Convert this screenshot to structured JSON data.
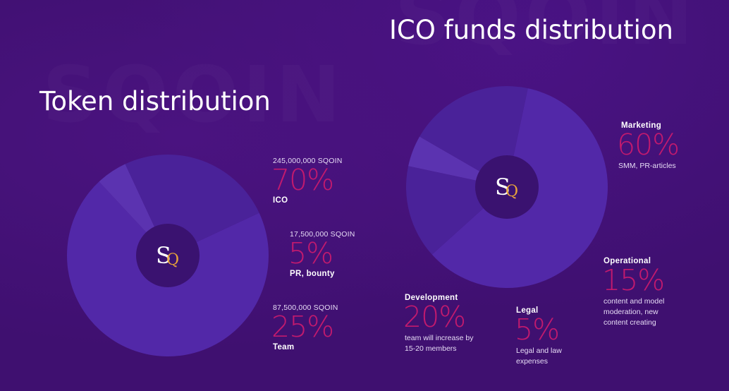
{
  "colors": {
    "background": "#3f1070",
    "pie_main": "#5228a8",
    "pie_shade": "#4a2299",
    "pie_light": "#5b33b0",
    "center": "#3a1270",
    "accent_percent": "#c21a6e",
    "logo_s": "#ffffff",
    "logo_q": "#e8a43a"
  },
  "logo": {
    "icon": "sqoin-logo-icon",
    "letter_s": "S",
    "letter_q": "Q"
  },
  "chart_data": [
    {
      "type": "pie",
      "title": "Token distribution",
      "slices": [
        {
          "name": "ICO",
          "value": 70,
          "amount": "245,000,000 SQOIN",
          "label": "70%"
        },
        {
          "name": "PR, bounty",
          "value": 5,
          "amount": "17,500,000 SQOIN",
          "label": "5%"
        },
        {
          "name": "Team",
          "value": 25,
          "amount": "87,500,000 SQOIN",
          "label": "25%"
        }
      ]
    },
    {
      "type": "pie",
      "title": "ICO funds distribution",
      "slices": [
        {
          "name": "Marketing",
          "value": 60,
          "label": "60%",
          "description": "SMM, PR-articles"
        },
        {
          "name": "Operational",
          "value": 15,
          "label": "15%",
          "description": "content and model moderation, new content creating"
        },
        {
          "name": "Legal",
          "value": 5,
          "label": "5%",
          "description": "Legal and law expenses"
        },
        {
          "name": "Development",
          "value": 20,
          "label": "20%",
          "description": "team will increase by 15-20 members"
        }
      ]
    }
  ]
}
